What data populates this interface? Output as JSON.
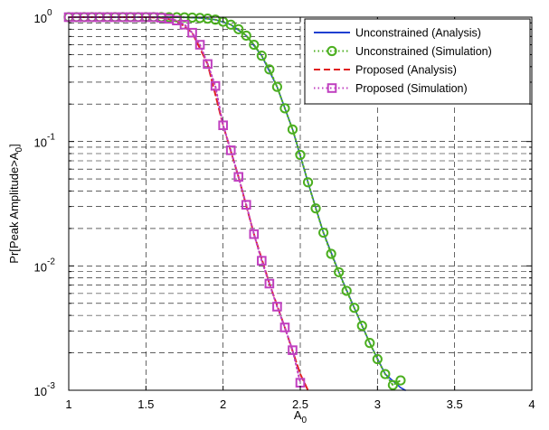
{
  "chart_data": {
    "type": "line",
    "xlabel": "A_0",
    "ylabel": "Pr[Peak Amplitude>A_0]",
    "xlim": [
      1,
      4
    ],
    "ylim": [
      0.001,
      1
    ],
    "yscale": "log",
    "grid": true,
    "legend_position": "top-right",
    "x_ticks": [
      1,
      1.5,
      2,
      2.5,
      3,
      3.5,
      4
    ],
    "x_tick_labels": [
      "1",
      "1.5",
      "2",
      "2.5",
      "3",
      "3.5",
      "4"
    ],
    "y_tick_labels": [
      {
        "value": 1,
        "base": "10",
        "exp": "0"
      },
      {
        "value": 0.1,
        "base": "10",
        "exp": "-1"
      },
      {
        "value": 0.01,
        "base": "10",
        "exp": "-2"
      },
      {
        "value": 0.001,
        "base": "10",
        "exp": "-3"
      }
    ],
    "series": [
      {
        "name": "Unconstrained (Analysis)",
        "color": "#1f3fd0",
        "style": "solid",
        "marker": "none",
        "x": [
          1.0,
          1.55,
          1.65,
          1.75,
          1.85,
          1.95,
          2.05,
          2.15,
          2.25,
          2.35,
          2.45,
          2.55,
          2.65,
          2.75,
          2.85,
          2.95,
          3.05,
          3.15,
          3.18
        ],
        "y": [
          1.0,
          1.0,
          0.999,
          0.996,
          0.985,
          0.955,
          0.87,
          0.71,
          0.49,
          0.275,
          0.125,
          0.047,
          0.0185,
          0.0089,
          0.0046,
          0.0024,
          0.00135,
          0.00105,
          0.001
        ]
      },
      {
        "name": "Unconstrained (Simulation)",
        "color": "#4caf20",
        "style": "dotted",
        "marker": "circle",
        "x": [
          1.0,
          1.05,
          1.1,
          1.15,
          1.2,
          1.25,
          1.3,
          1.35,
          1.4,
          1.45,
          1.5,
          1.55,
          1.6,
          1.65,
          1.7,
          1.75,
          1.8,
          1.85,
          1.9,
          1.95,
          2.0,
          2.05,
          2.1,
          2.15,
          2.2,
          2.25,
          2.3,
          2.35,
          2.4,
          2.45,
          2.5,
          2.55,
          2.6,
          2.65,
          2.7,
          2.75,
          2.8,
          2.85,
          2.9,
          2.95,
          3.0,
          3.05,
          3.1,
          3.15
        ],
        "y": [
          1.0,
          1.0,
          1.0,
          1.0,
          1.0,
          1.0,
          1.0,
          1.0,
          1.0,
          1.0,
          1.0,
          1.0,
          1.0,
          0.999,
          0.998,
          0.996,
          0.992,
          0.985,
          0.973,
          0.955,
          0.92,
          0.87,
          0.8,
          0.71,
          0.6,
          0.49,
          0.38,
          0.275,
          0.185,
          0.125,
          0.078,
          0.047,
          0.029,
          0.0185,
          0.0125,
          0.0089,
          0.0063,
          0.0046,
          0.0033,
          0.0024,
          0.00178,
          0.00135,
          0.0011,
          0.0012
        ]
      },
      {
        "name": "Proposed (Analysis)",
        "color": "#e02020",
        "style": "dashed",
        "marker": "none",
        "x": [
          1.0,
          1.5,
          1.6,
          1.7,
          1.8,
          1.9,
          2.0,
          2.1,
          2.2,
          2.3,
          2.4,
          2.5,
          2.55
        ],
        "y": [
          1.0,
          1.0,
          0.99,
          0.94,
          0.75,
          0.42,
          0.135,
          0.052,
          0.018,
          0.0072,
          0.0032,
          0.00135,
          0.001
        ]
      },
      {
        "name": "Proposed (Simulation)",
        "color": "#c040c0",
        "style": "dotted",
        "marker": "square",
        "x": [
          1.0,
          1.05,
          1.1,
          1.15,
          1.2,
          1.25,
          1.3,
          1.35,
          1.4,
          1.45,
          1.5,
          1.55,
          1.6,
          1.65,
          1.7,
          1.75,
          1.8,
          1.85,
          1.9,
          1.95,
          2.0,
          2.05,
          2.1,
          2.15,
          2.2,
          2.25,
          2.3,
          2.35,
          2.4,
          2.45,
          2.5
        ],
        "y": [
          1.0,
          1.0,
          1.0,
          1.0,
          1.0,
          1.0,
          1.0,
          1.0,
          1.0,
          1.0,
          1.0,
          1.0,
          0.99,
          0.97,
          0.94,
          0.87,
          0.75,
          0.6,
          0.42,
          0.28,
          0.135,
          0.085,
          0.052,
          0.031,
          0.018,
          0.011,
          0.0072,
          0.0047,
          0.0032,
          0.0021,
          0.00115
        ]
      }
    ]
  }
}
